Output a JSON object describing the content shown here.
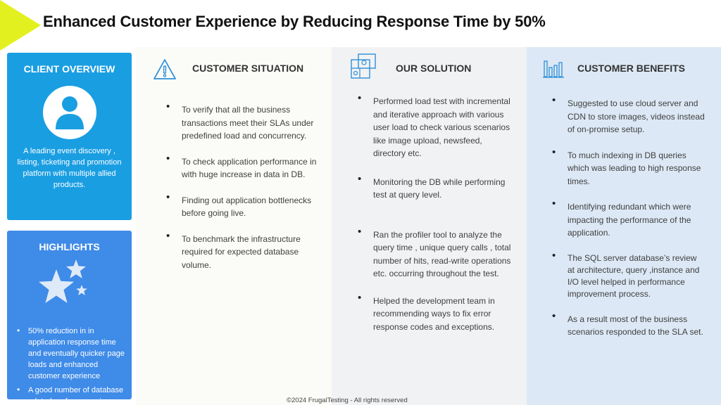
{
  "title": "Enhanced Customer Experience by Reducing Response Time by 50%",
  "client_overview": {
    "heading": "CLIENT OVERVIEW",
    "icon": "user-avatar-icon",
    "text": "A leading event discovery , listing, ticketing and promotion platform with multiple allied products."
  },
  "highlights": {
    "heading": "HIGHLIGHTS",
    "icon": "stars-icon",
    "items": [
      "50% reduction in in application response time and eventually quicker page loads and enhanced customer experience",
      "A good number of database related performance issues"
    ]
  },
  "customer_situation": {
    "heading": "CUSTOMER SITUATION",
    "icon": "warning-triangle-icon",
    "items": [
      "To verify that all the business transactions meet their SLAs under predefined load and concurrency.",
      "To check application performance in with huge increase in data in DB.",
      "Finding out application bottlenecks before going live.",
      "To benchmark the infrastructure required for expected database volume."
    ]
  },
  "our_solution": {
    "heading": "OUR SOLUTION",
    "icon": "puzzle-icon",
    "items": [
      "Performed load test with incremental and iterative approach with various user load to check various scenarios like image upload, newsfeed, directory etc.",
      "Monitoring the DB while performing test at query level.",
      "Ran the profiler tool to analyze the query time , unique query calls , total number of hits, read-write operations etc. occurring throughout the test.",
      "Helped the development team in recommending ways to fix  error response codes and exceptions."
    ]
  },
  "customer_benefits": {
    "heading": "CUSTOMER BENEFITS",
    "icon": "bar-chart-icon",
    "items": [
      "Suggested to use cloud server and CDN to store images, videos instead of on-promise setup.",
      "To much indexing in DB queries which was leading to high response times.",
      "Identifying redundant which were impacting the performance of the application.",
      "The SQL server database’s review at architecture, query ,instance and I/O level helped in performance improvement process.",
      "As a result  most of the business scenarios responded to the SLA set."
    ]
  },
  "footer": "©2024 FrugalTesting - All rights reserved",
  "colors": {
    "overview_bg": "#1a9ee2",
    "highlights_bg": "#3f8be8",
    "accent_yellow": "#e3f01f",
    "accent_blue": "#1a84d6",
    "benefits_bg": "#dce8f5"
  }
}
